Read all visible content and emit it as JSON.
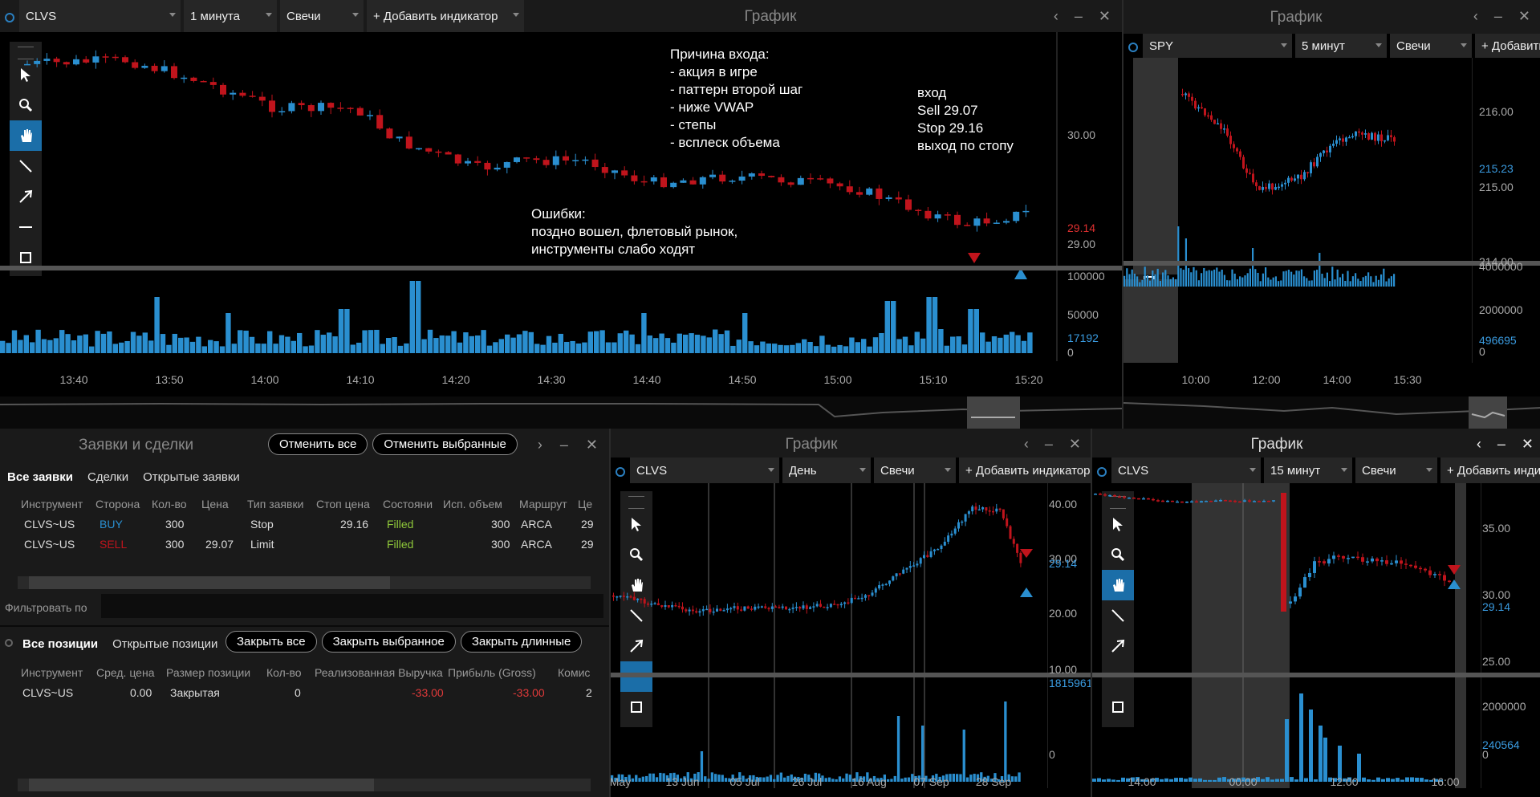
{
  "chart1": {
    "title": "График",
    "symbol": "CLVS",
    "interval": "1 минута",
    "style": "Свечи",
    "add_indicator": "+ Добавить индикатор",
    "price_ticks": [
      "30.00",
      "29.00"
    ],
    "price_marker_sell": "29.14",
    "volume_ticks": [
      "100000",
      "50000",
      "0"
    ],
    "volume_marker": "17192",
    "time_ticks": [
      "13:40",
      "13:50",
      "14:00",
      "14:10",
      "14:20",
      "14:30",
      "14:40",
      "14:50",
      "15:00",
      "15:10",
      "15:20"
    ],
    "note_entry_reason": "Причина входа:\n- акция в игре\n- паттерн второй шаг\n- ниже VWAP\n- степы\n- всплеск объема",
    "note_trade": "вход\nSell 29.07\nStop 29.16\nвыход по стопу",
    "note_mistakes": "Ошибки:\nпоздно вошел, флетовый рынок,\nинструменты слабо ходят"
  },
  "chart2": {
    "title": "График",
    "symbol": "SPY",
    "interval": "5 минут",
    "style": "Свечи",
    "add_indicator": "+ Добавить",
    "price_ticks": [
      "216.00",
      "215.00",
      "214.00"
    ],
    "price_marker": "215.23",
    "volume_ticks": [
      "4000000",
      "2000000",
      "0"
    ],
    "volume_marker": "496695",
    "time_ticks": [
      "10:00",
      "12:00",
      "14:00",
      "15:30"
    ]
  },
  "chart3": {
    "title": "График",
    "symbol": "CLVS",
    "interval": "День",
    "style": "Свечи",
    "add_indicator": "+ Добавить индикатор",
    "price_ticks": [
      "40.00",
      "30.00",
      "20.00",
      "10.00"
    ],
    "price_marker": "29.14",
    "volume_marker": "1815961",
    "volume_zero": "0",
    "time_ticks": [
      "May",
      "13 Jun",
      "05 Jul",
      "26 Jul",
      "16 Aug",
      "07 Sep",
      "28 Sep"
    ]
  },
  "chart4": {
    "title": "График",
    "symbol": "CLVS",
    "interval": "15 минут",
    "style": "Свечи",
    "add_indicator": "+ Добавить индик",
    "price_ticks": [
      "35.00",
      "30.00",
      "25.00"
    ],
    "price_marker": "29.14",
    "volume_ticks": [
      "2000000",
      "0"
    ],
    "volume_marker": "240564",
    "time_ticks": [
      "14:00",
      "00:00",
      "12:00",
      "16:00"
    ]
  },
  "orders": {
    "title": "Заявки и сделки",
    "cancel_all": "Отменить все",
    "cancel_selected": "Отменить выбранные",
    "tabs": [
      "Все заявки",
      "Сделки",
      "Открытые заявки"
    ],
    "columns": [
      "Инструмент",
      "Сторона",
      "Кол-во",
      "Цена",
      "Тип заявки",
      "Стоп цена",
      "Состояни",
      "Исп. объем",
      "Маршрут",
      "Це"
    ],
    "rows": [
      [
        "CLVS~US",
        "BUY",
        "300",
        "",
        "Stop",
        "29.16",
        "Filled",
        "300",
        "ARCA",
        "29"
      ],
      [
        "CLVS~US",
        "SELL",
        "300",
        "29.07",
        "Limit",
        "",
        "Filled",
        "300",
        "ARCA",
        "29"
      ]
    ],
    "filter_label": "Фильтровать по"
  },
  "positions": {
    "tabs": [
      "Все позиции",
      "Открытые позиции"
    ],
    "close_all": "Закрыть все",
    "close_selected": "Закрыть выбранное",
    "close_long": "Закрыть длинные",
    "columns": [
      "Инструмент",
      "Сред. цена",
      "Размер позиции",
      "Кол-во",
      "Реализованная Выручка",
      "Прибыль (Gross)",
      "Комис"
    ],
    "rows": [
      [
        "CLVS~US",
        "0.00",
        "Закрытая",
        "0",
        "-33.00",
        "-33.00",
        "2"
      ]
    ]
  },
  "colors": {
    "up": "#2a8fd0",
    "down": "#c0141c",
    "accent": "#1b6ea8",
    "background": "#000000"
  },
  "icons": [
    "cursor-icon",
    "zoom-icon",
    "hand-icon",
    "line-icon",
    "arrow-icon",
    "hline-icon",
    "rect-icon"
  ]
}
